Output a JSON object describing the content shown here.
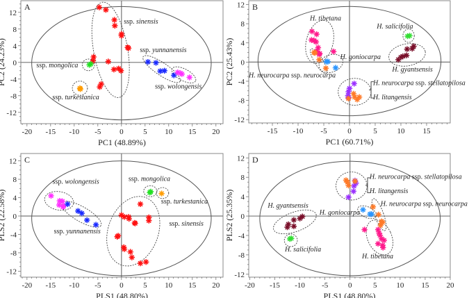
{
  "chart_data": [
    {
      "panel": "A",
      "type": "scatter",
      "xlabel": "PC1 (48.89%)",
      "ylabel": "PC2 (24.23%)",
      "xlim": [
        -21.3,
        21.5
      ],
      "ylim": [
        -14.7,
        14.8
      ],
      "xticks": [
        -20,
        -15,
        -10,
        -5,
        0,
        5,
        10,
        15,
        20
      ],
      "yticks": [
        -12,
        -8,
        -4,
        0,
        4,
        8,
        12
      ],
      "series": [
        {
          "name": "ssp. sinensis",
          "color": "#ff1010",
          "points": [
            [
              -4.7,
              13.2
            ],
            [
              -3.3,
              12.6
            ],
            [
              -1.5,
              10.2
            ],
            [
              -1.4,
              8.8
            ],
            [
              0,
              6.8
            ],
            [
              0,
              6.4
            ],
            [
              1.3,
              3.6
            ],
            [
              1.5,
              3.4
            ],
            [
              -5.9,
              1.3
            ],
            [
              -6.0,
              0.4
            ],
            [
              -2.8,
              0.2
            ],
            [
              -1.6,
              -1.7
            ],
            [
              -0.6,
              -1.5
            ],
            [
              -0.1,
              -2.0
            ],
            [
              -4.3,
              -5.2
            ],
            [
              -4.6,
              -5.9
            ]
          ]
        },
        {
          "name": "ssp. mongolica",
          "color": "#22e022",
          "points": [
            [
              -6.8,
              -0.6
            ],
            [
              -6.5,
              -0.4
            ]
          ]
        },
        {
          "name": "ssp. turkestanica",
          "color": "#ff9c00",
          "points": [
            [
              -8.8,
              -6.2
            ],
            [
              -8.7,
              -6.4
            ]
          ]
        },
        {
          "name": "ssp. yunnanensis",
          "color": "#1a2aff",
          "points": [
            [
              5.6,
              0.1
            ],
            [
              7.3,
              -0.1
            ],
            [
              8.2,
              -2.1
            ],
            [
              9.1,
              -2.0
            ],
            [
              11.1,
              -3.1
            ]
          ]
        },
        {
          "name": "ssp. wolongensis",
          "color": "#ff30ff",
          "points": [
            [
              11.9,
              -2.4
            ],
            [
              12.5,
              -2.6
            ],
            [
              12.8,
              -2.8
            ],
            [
              14.4,
              -3.6
            ]
          ]
        }
      ],
      "annotations": [
        "A",
        "ssp. sinensis",
        "ssp. yunnanensis",
        "ssp. mongolica",
        "ssp. turkestanica",
        "ssp. wolongensis"
      ]
    },
    {
      "panel": "B",
      "type": "scatter",
      "xlabel": "PC1 (60.71%)",
      "ylabel": "PC2 (25.43%)",
      "xlim": [
        -19.6,
        19.6
      ],
      "ylim": [
        -12.7,
        12.8
      ],
      "xticks": [
        -15,
        -10,
        -5,
        0,
        5,
        10,
        15
      ],
      "yticks": [
        -12,
        -8,
        -4,
        0,
        4,
        8,
        12
      ],
      "series": [
        {
          "name": "H. tibetana",
          "color": "#ff1a8c",
          "points": [
            [
              -7.3,
              6.4
            ],
            [
              -6.4,
              5.8
            ],
            [
              -7.4,
              4.6
            ],
            [
              -6.9,
              4.5
            ],
            [
              -6.5,
              4.2
            ],
            [
              -6.1,
              3.0
            ],
            [
              -6.3,
              2.3
            ],
            [
              -5.8,
              1.8
            ],
            [
              -5.9,
              1.6
            ],
            [
              -3.1,
              2.2
            ]
          ]
        },
        {
          "name": "H. neurocarpa ssp. neurocarpa",
          "color": "#ff7a28",
          "points": [
            [
              -6.9,
              2.0
            ],
            [
              -6.7,
              1.9
            ],
            [
              -5.9,
              0.5
            ],
            [
              -4.6,
              -1.3
            ]
          ]
        },
        {
          "name": "H. goniocarpa",
          "color": "#2a95ff",
          "points": [
            [
              -4.5,
              0.1
            ],
            [
              -4.2,
              0.1
            ],
            [
              -2.7,
              -1.2
            ]
          ]
        },
        {
          "name": "H. salicifolia",
          "color": "#33dd33",
          "points": [
            [
              11.3,
              5.4
            ],
            [
              11.7,
              5.5
            ]
          ]
        },
        {
          "name": "H. gyantsensis",
          "color": "#7a0f2a",
          "points": [
            [
              9.5,
              0.5
            ],
            [
              10.0,
              1.0
            ],
            [
              10.4,
              1.2
            ],
            [
              11.1,
              1.4
            ],
            [
              11.2,
              2.7
            ],
            [
              12.2,
              2.8
            ],
            [
              12.5,
              3.3
            ]
          ]
        },
        {
          "name": "H. neurocarpa ssp. stellatopilosa",
          "color": "#9a30ff",
          "points": [
            [
              0.9,
              -4.5
            ],
            [
              0,
              -5.5
            ],
            [
              -0.2,
              -6.2
            ],
            [
              -0.3,
              -7.0
            ],
            [
              -0.2,
              -7.4
            ]
          ]
        },
        {
          "name": "H. litangensis",
          "color": "#ff7a28",
          "points": [
            [
              0.8,
              -6.6
            ],
            [
              1.0,
              -7.3
            ],
            [
              1.5,
              -7.8
            ],
            [
              1.9,
              -7.3
            ],
            [
              -0.2,
              -7.6
            ]
          ]
        }
      ],
      "annotations": [
        "B",
        "H. tibetana",
        "H. goniocarpa",
        "H. neurocarpa ssp. neurocarpa",
        "H. salicifolia",
        "H. gyantsensis",
        "H. neurocarpa ssp. stellatopilosa",
        "H. litangensis"
      ]
    },
    {
      "panel": "C",
      "type": "scatter",
      "xlabel": "PLS1 (48.80%)",
      "ylabel": "PLS2 (22.58%)",
      "xlim": [
        -21.3,
        21.5
      ],
      "ylim": [
        -13.3,
        13.6
      ],
      "xticks": [
        -20,
        -15,
        -10,
        -5,
        0,
        5,
        10,
        15,
        20
      ],
      "yticks": [
        -12,
        -8,
        -4,
        0,
        4,
        8,
        12
      ],
      "series": [
        {
          "name": "ssp. wolongensis",
          "color": "#ff30ff",
          "points": [
            [
              -14.9,
              4.4
            ],
            [
              -13.1,
              3.3
            ],
            [
              -12.5,
              3.2
            ],
            [
              -13.2,
              2.4
            ],
            [
              -12.4,
              2.0
            ],
            [
              -12.2,
              2.2
            ]
          ]
        },
        {
          "name": "ssp. yunnanensis",
          "color": "#1a2aff",
          "points": [
            [
              -11.4,
              2.6
            ],
            [
              -9.2,
              1.1
            ],
            [
              -8.4,
              0.6
            ],
            [
              -7.3,
              -0.9
            ],
            [
              -5.4,
              -1.9
            ]
          ]
        },
        {
          "name": "ssp. mongolica",
          "color": "#22e022",
          "points": [
            [
              6.2,
              5.3
            ],
            [
              6.0,
              5.1
            ]
          ]
        },
        {
          "name": "ssp. turkestanica",
          "color": "#ff9c00",
          "points": [
            [
              8.5,
              4.9
            ]
          ]
        },
        {
          "name": "ssp. sinensis",
          "color": "#ff1010",
          "points": [
            [
              4.0,
              2.6
            ],
            [
              0,
              0.2
            ],
            [
              0.6,
              -0.2
            ],
            [
              1.5,
              -0.2
            ],
            [
              1.6,
              -0.6
            ],
            [
              2.8,
              -1.5
            ],
            [
              2.9,
              -1.6
            ],
            [
              5.8,
              -0.3
            ],
            [
              5.8,
              -1.0
            ],
            [
              -0.9,
              -4.5
            ],
            [
              -0.7,
              -4.3
            ],
            [
              0.5,
              -6.8
            ],
            [
              0.6,
              -7.2
            ],
            [
              1.9,
              -7.8
            ],
            [
              2.2,
              -9.0
            ],
            [
              4.0,
              -10.3
            ],
            [
              5.2,
              -10.0
            ]
          ]
        }
      ],
      "annotations": [
        "C",
        "ssp. wolongensis",
        "ssp. mongolica",
        "ssp. turkestanica",
        "ssp. sinensis",
        "ssp. yunnanensis"
      ]
    },
    {
      "panel": "D",
      "type": "scatter",
      "xlabel": "PLS1 (48.80%)",
      "ylabel": "PLS2 (25.35%)",
      "xlim": [
        -20.2,
        20
      ],
      "ylim": [
        -12.6,
        12.9
      ],
      "xticks": [
        -20,
        -15,
        -10,
        -5,
        0,
        5,
        10,
        15,
        20
      ],
      "yticks": [
        -12,
        -8,
        -4,
        0,
        4,
        8,
        12
      ],
      "series": [
        {
          "name": "H. neurocarpa ssp. stellatopilosa",
          "color": "#9a30ff",
          "points": [
            [
              1.0,
              7.3
            ],
            [
              1.2,
              6.8
            ],
            [
              0.8,
              6.2
            ],
            [
              0.7,
              5.1
            ],
            [
              -0.3,
              3.9
            ]
          ]
        },
        {
          "name": "H. litangensis",
          "color": "#ff7a28",
          "points": [
            [
              -0.8,
              7.4
            ],
            [
              -0.5,
              7.0
            ],
            [
              -0.3,
              6.3
            ],
            [
              1.0,
              7.2
            ]
          ]
        },
        {
          "name": "H. goniocarpa",
          "color": "#2a95ff",
          "points": [
            [
              2.6,
              1.3
            ],
            [
              4.0,
              0.4
            ],
            [
              4.3,
              0.4
            ]
          ]
        },
        {
          "name": "H. neurocarpa ssp. neurocarpa",
          "color": "#ff7a28",
          "points": [
            [
              4.6,
              1.9
            ],
            [
              5.7,
              0.3
            ],
            [
              6.3,
              -1.1
            ],
            [
              6.5,
              -1.3
            ],
            [
              6.1,
              -1.9
            ]
          ]
        },
        {
          "name": "H. tibetana",
          "color": "#ff1a8c",
          "points": [
            [
              2.9,
              -2.8
            ],
            [
              5.6,
              -2.8
            ],
            [
              5.8,
              -3.5
            ],
            [
              6.0,
              -4.0
            ],
            [
              6.3,
              -4.7
            ],
            [
              6.8,
              -5.0
            ],
            [
              5.6,
              -5.7
            ],
            [
              6.5,
              -6.0
            ],
            [
              6.6,
              -6.5
            ]
          ]
        },
        {
          "name": "H. gyantsensis",
          "color": "#7a0f2a",
          "points": [
            [
              -12.5,
              -2.3
            ],
            [
              -12.3,
              -1.7
            ],
            [
              -11.2,
              -0.8
            ],
            [
              -11.2,
              -2.1
            ],
            [
              -10.0,
              -0.5
            ],
            [
              -9.5,
              -0.1
            ]
          ]
        },
        {
          "name": "H. salicifolia",
          "color": "#33dd33",
          "points": [
            [
              -12.0,
              -4.7
            ],
            [
              -11.7,
              -4.6
            ]
          ]
        }
      ],
      "annotations": [
        "D",
        "H. neurocarpa ssp. stellatopilosa",
        "H. litangensis",
        "H. neurocarpa ssp. neurocarpa",
        "H. goniocarpa",
        "H. gyantsensis",
        "H. salicifolia",
        "H. tibetana"
      ]
    }
  ]
}
